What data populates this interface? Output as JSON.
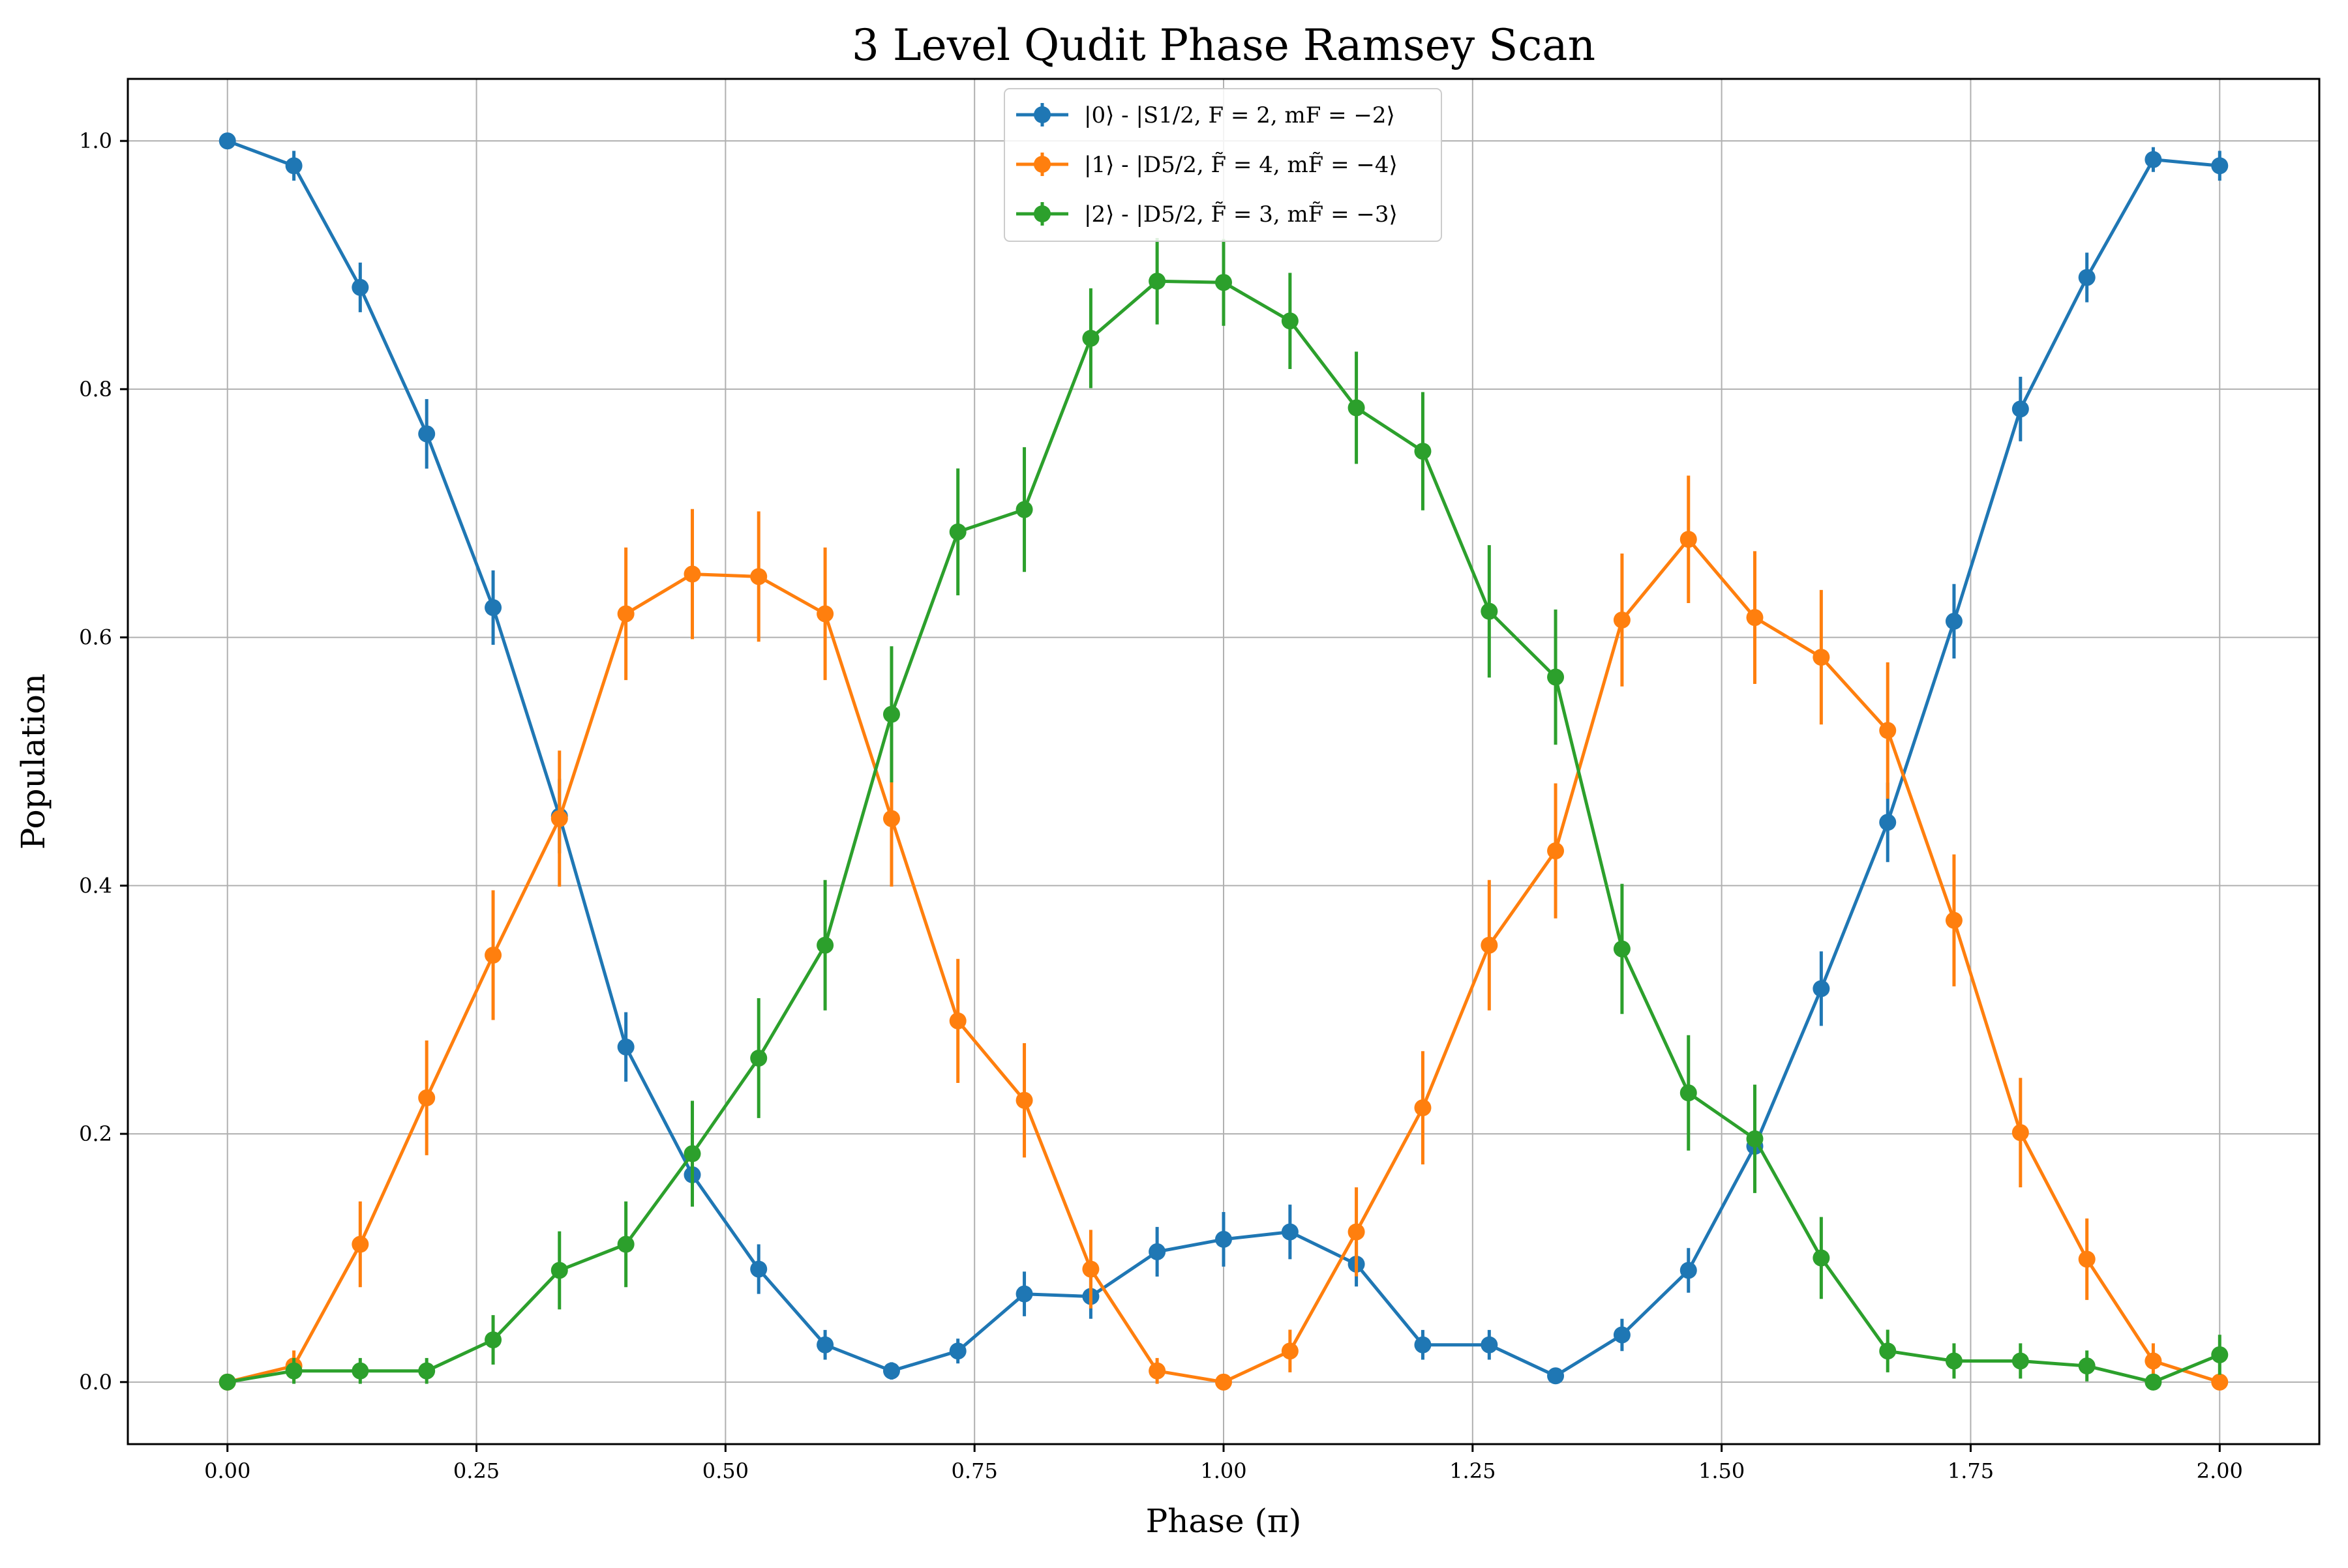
{
  "chart_data": {
    "type": "line",
    "title": "3 Level Qudit Phase Ramsey Scan",
    "xlabel": "Phase (π)",
    "ylabel": "Population",
    "xlim": [
      -0.1,
      2.1
    ],
    "ylim": [
      -0.05,
      1.05
    ],
    "xticks": [
      0.0,
      0.25,
      0.5,
      0.75,
      1.0,
      1.25,
      1.5,
      1.75,
      2.0
    ],
    "xtick_labels": [
      "0.00",
      "0.25",
      "0.50",
      "0.75",
      "1.00",
      "1.25",
      "1.50",
      "1.75",
      "2.00"
    ],
    "yticks": [
      0.0,
      0.2,
      0.4,
      0.6,
      0.8,
      1.0
    ],
    "ytick_labels": [
      "0.0",
      "0.2",
      "0.4",
      "0.6",
      "0.8",
      "1.0"
    ],
    "grid": true,
    "legend_position": "top-center",
    "x": [
      0.0,
      0.0667,
      0.1333,
      0.2,
      0.2667,
      0.3333,
      0.4,
      0.4667,
      0.5333,
      0.6,
      0.6667,
      0.7333,
      0.8,
      0.8667,
      0.9333,
      1.0,
      1.0667,
      1.1333,
      1.2,
      1.2667,
      1.3333,
      1.4,
      1.4667,
      1.5333,
      1.6,
      1.6667,
      1.7333,
      1.8,
      1.8667,
      1.9333,
      2.0
    ],
    "series": [
      {
        "name": "|0⟩ - |S1/2, F = 2, mF = −2⟩",
        "color": "#1f77b4",
        "values": [
          1.0,
          0.98,
          0.882,
          0.764,
          0.624,
          0.456,
          0.27,
          0.167,
          0.091,
          0.03,
          0.009,
          0.025,
          0.071,
          0.069,
          0.105,
          0.115,
          0.121,
          0.095,
          0.03,
          0.03,
          0.005,
          0.038,
          0.09,
          0.19,
          0.317,
          0.451,
          0.613,
          0.784,
          0.89,
          0.985,
          0.98
        ],
        "errors": [
          0.005,
          0.012,
          0.02,
          0.028,
          0.03,
          0.03,
          0.028,
          0.024,
          0.02,
          0.012,
          0.007,
          0.01,
          0.018,
          0.018,
          0.02,
          0.022,
          0.022,
          0.018,
          0.012,
          0.012,
          0.005,
          0.013,
          0.018,
          0.024,
          0.03,
          0.032,
          0.03,
          0.026,
          0.02,
          0.01,
          0.012
        ]
      },
      {
        "name": "|1⟩ - |D5/2, F̃ = 4, mF̃ = −4⟩",
        "color": "#ff7f0e",
        "values": [
          0.0,
          0.013,
          0.111,
          0.229,
          0.344,
          0.454,
          0.619,
          0.651,
          0.649,
          0.619,
          0.454,
          0.291,
          0.227,
          0.091,
          0.009,
          0.0,
          0.025,
          0.121,
          0.221,
          0.352,
          0.428,
          0.614,
          0.679,
          0.616,
          0.584,
          0.525,
          0.372,
          0.201,
          0.099,
          0.017,
          0.0
        ]
      },
      {
        "name": "|2⟩ - |D5/2, F̃ = 3, mF̃ = −3⟩",
        "color": "#2ca02c",
        "values": [
          0.0,
          0.009,
          0.009,
          0.009,
          0.034,
          0.09,
          0.111,
          0.184,
          0.261,
          0.352,
          0.538,
          0.685,
          0.703,
          0.841,
          0.887,
          0.886,
          0.855,
          0.785,
          0.75,
          0.621,
          0.568,
          0.349,
          0.233,
          0.196,
          0.1,
          0.025,
          0.017,
          0.017,
          0.013,
          0.0,
          0.022
        ]
      }
    ]
  }
}
